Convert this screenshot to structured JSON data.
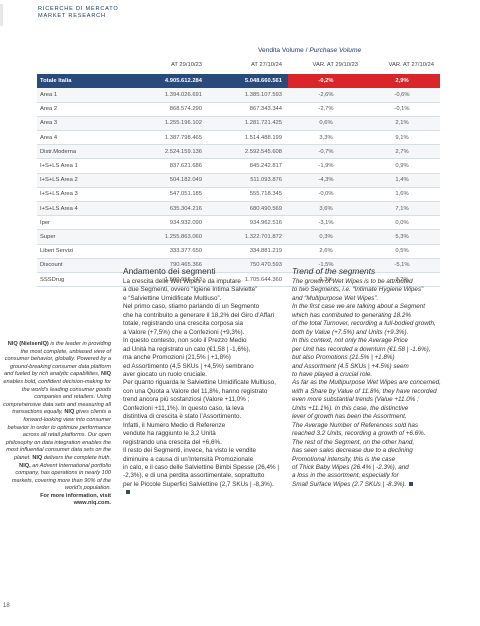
{
  "header": {
    "logo_line1": "RICERCHE DI MERCATO",
    "logo_line2": "MARKET RESEARCH"
  },
  "table": {
    "title_main": "Vendita Volume / ",
    "title_italic": "Purchase Volume",
    "columns": [
      "",
      "AT 29/10/23",
      "AT 27/10/24",
      "VAR. AT 29/10/23",
      "VAR. AT 27/10/24"
    ],
    "rows": [
      {
        "label": "Totale Italia",
        "c1": "4.905.612.284",
        "c2": "5.048.660.561",
        "c3": "-0,2%",
        "c4": "2,9%",
        "total": true
      },
      {
        "label": "Area 1",
        "c1": "1.394.026.691",
        "c2": "1.385.107.593",
        "c3": "-2,6%",
        "c4": "-0,6%"
      },
      {
        "label": "Area 2",
        "c1": "868.574.290",
        "c2": "867.343.344",
        "c3": "-2,7%",
        "c4": "-0,1%"
      },
      {
        "label": "Area 3",
        "c1": "1.255.196.102",
        "c2": "1.281.721.425",
        "c3": "0,6%",
        "c4": "2,1%"
      },
      {
        "label": "Area 4",
        "c1": "1.387.798.465",
        "c2": "1.514.488.199",
        "c3": "3,3%",
        "c4": "9,1%"
      },
      {
        "label": "Distr.Moderna",
        "c1": "2.524.159.136",
        "c2": "2.592.545.608",
        "c3": "-0,7%",
        "c4": "2,7%"
      },
      {
        "label": "I+S+LS Area 1",
        "c1": "837.621.686",
        "c2": "845.242.817",
        "c3": "-1,9%",
        "c4": "0,9%"
      },
      {
        "label": "I+S+LS Area 2",
        "c1": "504.182.049",
        "c2": "511.093.876",
        "c3": "-4,3%",
        "c4": "1,4%"
      },
      {
        "label": "I+S+LS Area 3",
        "c1": "547.051.185",
        "c2": "555.718.345",
        "c3": "-0,0%",
        "c4": "1,6%"
      },
      {
        "label": "I+S+LS Area 4",
        "c1": "635.304.216",
        "c2": "680.490.569",
        "c3": "3,6%",
        "c4": "7,1%"
      },
      {
        "label": "Iper",
        "c1": "934.932.090",
        "c2": "934.962.516",
        "c3": "-3,1%",
        "c4": "0,0%"
      },
      {
        "label": "Super",
        "c1": "1.255.863.060",
        "c2": "1.322.701.872",
        "c3": "0,3%",
        "c4": "5,3%"
      },
      {
        "label": "Liberi Servizi",
        "c1": "333.377.650",
        "c2": "334.881.219",
        "c3": "2,6%",
        "c4": "0,5%"
      },
      {
        "label": "Discount",
        "c1": "790.465.366",
        "c2": "750.470.593",
        "c3": "-1,5%",
        "c4": "-5,1%"
      },
      {
        "label": "SSSDrug",
        "c1": "1.590.956.743",
        "c2": "1.705.644.360",
        "c3": "1,3%",
        "c4": "7,2%"
      }
    ]
  },
  "sidebar": {
    "p1": "NIQ (NielsenIQ)",
    "p2": " is the leader in providing the most complete, unbiased view of consumer behavior, globally. Powered by a ground-breaking consumer data platform and fueled by rich analytic capabilities, ",
    "p3": "NIQ",
    "p4": " enables bold, confident decision-making for the world's leading consumer goods companies and retailers. Using comprehensive data sets and measuring all transactions equally, ",
    "p5": "NIQ",
    "p6": " gives clients a forward-looking view into consumer behavior in order to optimize performance across all retail platforms. Our open philosophy on data integration enables the most influential consumer data sets on the planet. ",
    "p7": "NIQ",
    "p8": " delivers the complete truth. ",
    "p9": "NIQ,",
    "p10": " an Advent International portfolio company, has operations in nearly 100 markets, covering more than 90% of the world's population.",
    "p11": "For more information, visit www.niq.com."
  },
  "article_it": {
    "heading": "Andamento dei segmenti",
    "lines": [
      "La crescita delle Wet Wipes è da imputare",
      "a due Segmenti, ovvero “Igiene Intima Salviette”",
      "e “Salviettine Umidificate Multiuso”.",
      "Nel primo caso, stiamo parlando di un Segmento",
      "che ha contribuito a generare il 18,2% del Giro d’Affari",
      "totale, registrando una crescita corposa sia",
      "a Valore (+7,5%) che a Confezioni (+9,3%).",
      "In questo contesto, non solo il Prezzo Medio",
      "ad Unità ha registrato un calo (€1,58 | -1,6%),",
      "ma anche Promozioni (21,5% | +1,8%)",
      "ed Assortimento (4,5 SKUs | +4,5%) sembrano",
      "aver giocato un ruolo cruciale.",
      "Per quanto riguarda le Salviettine Umidificate Multiuso,",
      "con una Quota a Valore del 11,8%, hanno registrato",
      "trend ancora più sostanziosi (Valore +11,0% ;",
      "Confezioni +11,1%). In questo caso, la leva",
      "distintiva di crescita è stato l’Assortimento.",
      "Infatti, il Numero Medio di Referenze",
      "vendute ha raggiunto le 3,2 Unità",
      "registrando una crescita del +6,6%.",
      "Il resto dei Segmenti, invece, ha visto le vendite",
      "diminuire a causa di un’Intensità Promozionale",
      "in calo, e il caso delle Salviettine Bimbi Spesse (26,4% |",
      "-2,3%), e di una perdita assortimentale, soprattutto",
      "per le Piccole Superfici Salviettine (2,7 SKUs | -8,3%)."
    ]
  },
  "article_en": {
    "heading": "Trend of the segments",
    "lines": [
      "The growth of Wet Wipes is to be attributed",
      "to two Segments, i.e. “Intimate Hygiene Wipes”",
      "and “Multipurpose Wet Wipes”.",
      "In the first case we are talking about a Segment",
      "which has contributed to generating 18.2%",
      "of the total Turnover, recording a full-bodied growth,",
      "both by Value (+7.5%) and Units (+9.3%).",
      "In this context, not only the Average Price",
      "per Unit has recorded a downturn (€1.58 | -1.6%),",
      "but also Promotions (21.5% | +1.8%)",
      "and Assortment (4.5 SKUs | +4.5%) seem",
      "to have played a crucial role.",
      "As far as the Multipurpose Wet Wipes are concerned,",
      "with a Share by Value of 11.8%, they have recorded",
      "even more substantial trends (Value +11.0% ;",
      "Units +11.1%). In this case, the distinctive",
      "lever of growth has been the Assortment.",
      "The Average Number of References sold has",
      "reached 3.2 Units, recording a growth of +6.6%.",
      "The rest of the Segment, on the other hand,",
      "has seen sales decrease due to a declining",
      "Promotional intensity, this is the case",
      "of Thick Baby Wipes (26.4% | -2.3%), and",
      "a loss in the assortment, especially for",
      "Small Surface Wipes (2.7 SKUs | -8.3%)."
    ]
  },
  "page": {
    "number": "18"
  },
  "colors": {
    "navy": "#2b4a7c",
    "red": "#d9262b"
  }
}
